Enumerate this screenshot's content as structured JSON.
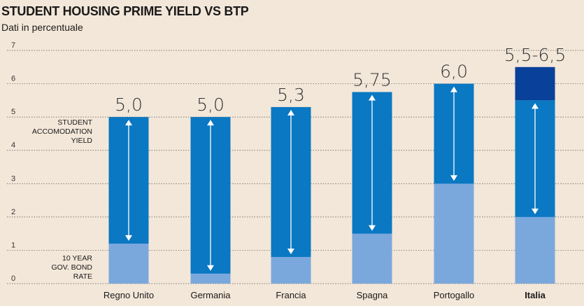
{
  "title": "STUDENT HOUSING PRIME YIELD VS BTP",
  "subtitle": "Dati in percentuale",
  "colors": {
    "background": "#f3e7d9",
    "yield_bar": "#0a78c2",
    "btp_bar": "#7aa8dc",
    "yield_range_top": "#08409a",
    "arrow": "#ffffff",
    "grid": "#555555"
  },
  "annotations": {
    "yield_label": [
      "STUDENT",
      "ACCOMODATION",
      "YIELD"
    ],
    "bond_label": [
      "10 YEAR",
      "GOV. BOND",
      "RATE"
    ]
  },
  "chart_data": {
    "type": "bar",
    "title": "STUDENT HOUSING PRIME YIELD VS BTP",
    "subtitle": "Dati in percentuale",
    "categories": [
      "Regno Unito",
      "Germania",
      "Francia",
      "Spagna",
      "Portogallo",
      "Italia"
    ],
    "value_labels": [
      "5,0",
      "5,0",
      "5,3",
      "5,75",
      "6,0",
      "5,5-6,5"
    ],
    "series": [
      {
        "name": "STUDENT ACCOMODATION YIELD",
        "values": [
          5.0,
          5.0,
          5.3,
          5.75,
          6.0,
          5.5
        ],
        "range_high": [
          null,
          null,
          null,
          null,
          null,
          6.5
        ]
      },
      {
        "name": "10 YEAR GOV. BOND RATE",
        "values": [
          1.2,
          0.3,
          0.8,
          1.5,
          3.0,
          2.0
        ]
      }
    ],
    "ylim": [
      0,
      7
    ],
    "yticks": [
      "0",
      "1",
      "2",
      "3",
      "4",
      "5",
      "6",
      "7"
    ],
    "grid": true,
    "bold_category": "Italia"
  }
}
